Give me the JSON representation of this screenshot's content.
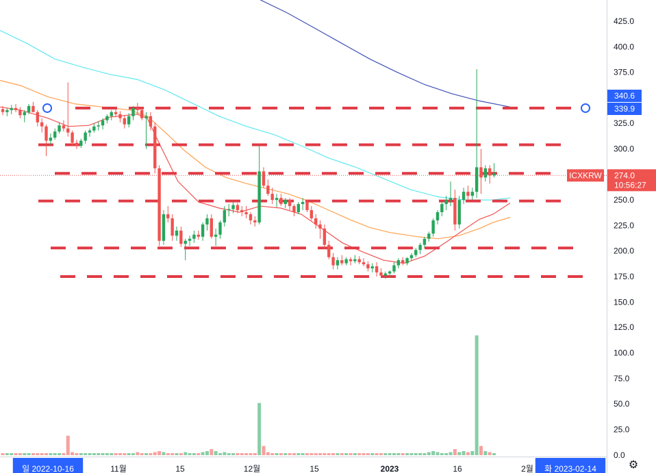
{
  "chart_data": {
    "type": "candlestick",
    "symbol": "ICXKRW",
    "last_price": "274.0",
    "countdown": "10:56:27",
    "price_axis": {
      "ylim": [
        144,
        446
      ],
      "ticks": [
        "425.0",
        "400.0",
        "375.0",
        "350.0",
        "325.0",
        "300.0",
        "275.0",
        "250.0",
        "225.0",
        "200.0",
        "175.0",
        "150.0"
      ]
    },
    "volume_axis": {
      "ylim": [
        0,
        137
      ],
      "ticks": [
        "125.0",
        "100.0",
        "75.0",
        "50.0",
        "25.0",
        "0.0"
      ]
    },
    "x_axis": {
      "ticks": [
        {
          "label": "일 2022-10-16",
          "kind": "cursor"
        },
        {
          "label": "11월",
          "kind": "normal"
        },
        {
          "label": "15",
          "kind": "normal"
        },
        {
          "label": "12월",
          "kind": "normal"
        },
        {
          "label": "15",
          "kind": "normal"
        },
        {
          "label": "2023",
          "kind": "bold"
        },
        {
          "label": "16",
          "kind": "normal"
        },
        {
          "label": "2월",
          "kind": "normal"
        },
        {
          "label": "화 2023-02-14",
          "kind": "cursor"
        }
      ]
    },
    "price_badges": [
      {
        "value": "340.6",
        "color": "#2962ff"
      },
      {
        "value": "339.9",
        "color": "#2962ff"
      }
    ],
    "horizontal_levels": [
      340,
      304,
      276,
      249,
      203,
      175
    ],
    "level_anchor": 339.9,
    "candles": [
      [
        339,
        342,
        333,
        336
      ],
      [
        336,
        340,
        332,
        338
      ],
      [
        338,
        343,
        334,
        340
      ],
      [
        340,
        344,
        336,
        338
      ],
      [
        338,
        341,
        330,
        333
      ],
      [
        333,
        338,
        326,
        336
      ],
      [
        336,
        344,
        334,
        342
      ],
      [
        342,
        346,
        338,
        336
      ],
      [
        336,
        338,
        322,
        326
      ],
      [
        326,
        330,
        316,
        322
      ],
      [
        322,
        324,
        293,
        308
      ],
      [
        308,
        315,
        304,
        311
      ],
      [
        311,
        320,
        309,
        317
      ],
      [
        317,
        326,
        315,
        323
      ],
      [
        323,
        328,
        317,
        320
      ],
      [
        320,
        365,
        312,
        316
      ],
      [
        316,
        318,
        303,
        306
      ],
      [
        306,
        309,
        300,
        303
      ],
      [
        303,
        310,
        301,
        308
      ],
      [
        308,
        318,
        305,
        316
      ],
      [
        316,
        320,
        312,
        318
      ],
      [
        318,
        325,
        316,
        322
      ],
      [
        322,
        327,
        318,
        323
      ],
      [
        323,
        330,
        319,
        328
      ],
      [
        328,
        334,
        325,
        332
      ],
      [
        332,
        338,
        328,
        336
      ],
      [
        336,
        340,
        331,
        334
      ],
      [
        334,
        337,
        326,
        330
      ],
      [
        330,
        333,
        320,
        324
      ],
      [
        324,
        335,
        321,
        332
      ],
      [
        332,
        342,
        328,
        340
      ],
      [
        340,
        345,
        334,
        338
      ],
      [
        338,
        341,
        328,
        330
      ],
      [
        330,
        336,
        300,
        332
      ],
      [
        332,
        336,
        318,
        322
      ],
      [
        322,
        326,
        276,
        281
      ],
      [
        281,
        284,
        205,
        210
      ],
      [
        210,
        240,
        206,
        236
      ],
      [
        236,
        244,
        228,
        232
      ],
      [
        232,
        236,
        210,
        215
      ],
      [
        215,
        224,
        210,
        220
      ],
      [
        220,
        224,
        204,
        207
      ],
      [
        207,
        212,
        191,
        210
      ],
      [
        210,
        215,
        205,
        212
      ],
      [
        212,
        220,
        208,
        216
      ],
      [
        216,
        220,
        211,
        214
      ],
      [
        214,
        228,
        210,
        226
      ],
      [
        226,
        236,
        220,
        232
      ],
      [
        232,
        236,
        212,
        214
      ],
      [
        214,
        222,
        205,
        216
      ],
      [
        216,
        230,
        212,
        228
      ],
      [
        228,
        244,
        224,
        240
      ],
      [
        240,
        246,
        234,
        241
      ],
      [
        241,
        248,
        237,
        245
      ],
      [
        245,
        247,
        237,
        240
      ],
      [
        240,
        244,
        234,
        238
      ],
      [
        238,
        244,
        232,
        236
      ],
      [
        236,
        238,
        226,
        230
      ],
      [
        230,
        234,
        224,
        228
      ],
      [
        228,
        304,
        226,
        278
      ],
      [
        278,
        282,
        262,
        264
      ],
      [
        264,
        270,
        254,
        256
      ],
      [
        256,
        262,
        246,
        250
      ],
      [
        250,
        256,
        243,
        252
      ],
      [
        252,
        256,
        244,
        246
      ],
      [
        246,
        252,
        242,
        250
      ],
      [
        250,
        252,
        240,
        244
      ],
      [
        244,
        246,
        234,
        238
      ],
      [
        238,
        248,
        236,
        246
      ],
      [
        246,
        252,
        240,
        248
      ],
      [
        248,
        250,
        238,
        240
      ],
      [
        240,
        244,
        230,
        232
      ],
      [
        232,
        236,
        222,
        226
      ],
      [
        226,
        230,
        212,
        222
      ],
      [
        222,
        226,
        202,
        206
      ],
      [
        206,
        210,
        192,
        194
      ],
      [
        194,
        198,
        182,
        186
      ],
      [
        186,
        194,
        182,
        191
      ],
      [
        191,
        196,
        186,
        188
      ],
      [
        188,
        194,
        186,
        192
      ],
      [
        192,
        194,
        186,
        190
      ],
      [
        190,
        196,
        188,
        192
      ],
      [
        192,
        195,
        187,
        189
      ],
      [
        189,
        193,
        185,
        187
      ],
      [
        187,
        190,
        180,
        183
      ],
      [
        183,
        188,
        179,
        185
      ],
      [
        185,
        189,
        175,
        179
      ],
      [
        179,
        183,
        174,
        176
      ],
      [
        176,
        180,
        173,
        178
      ],
      [
        178,
        181,
        174,
        180
      ],
      [
        180,
        189,
        178,
        186
      ],
      [
        186,
        193,
        183,
        191
      ],
      [
        191,
        194,
        186,
        188
      ],
      [
        188,
        194,
        186,
        193
      ],
      [
        193,
        198,
        190,
        196
      ],
      [
        196,
        203,
        194,
        201
      ],
      [
        201,
        208,
        197,
        206
      ],
      [
        206,
        214,
        203,
        212
      ],
      [
        212,
        219,
        209,
        217
      ],
      [
        217,
        232,
        214,
        230
      ],
      [
        230,
        240,
        226,
        238
      ],
      [
        238,
        248,
        234,
        246
      ],
      [
        246,
        254,
        240,
        250
      ],
      [
        250,
        268,
        244,
        252
      ],
      [
        252,
        260,
        220,
        226
      ],
      [
        226,
        254,
        222,
        250
      ],
      [
        250,
        262,
        246,
        258
      ],
      [
        258,
        264,
        250,
        254
      ],
      [
        254,
        262,
        250,
        258
      ],
      [
        258,
        378,
        252,
        282
      ],
      [
        282,
        300,
        256,
        272
      ],
      [
        272,
        284,
        268,
        281
      ],
      [
        281,
        284,
        266,
        274
      ],
      [
        274,
        286,
        272,
        276
      ]
    ],
    "volumes": [
      2,
      2,
      2,
      2,
      2,
      2,
      2,
      2,
      2,
      2,
      2,
      2,
      2,
      2,
      2,
      19,
      3,
      2,
      2,
      2,
      2,
      2,
      2,
      2,
      2,
      2,
      2,
      2,
      2,
      2,
      2,
      3,
      2,
      2,
      2,
      3,
      4,
      3,
      2,
      2,
      2,
      2,
      3,
      2,
      2,
      2,
      3,
      4,
      6,
      4,
      2,
      3,
      2,
      2,
      2,
      2,
      2,
      2,
      2,
      51,
      9,
      3,
      2,
      2,
      2,
      2,
      2,
      2,
      2,
      2,
      2,
      2,
      2,
      2,
      2,
      2,
      2,
      2,
      2,
      2,
      2,
      2,
      2,
      2,
      2,
      2,
      2,
      2,
      2,
      2,
      2,
      2,
      2,
      2,
      2,
      2,
      2,
      2,
      3,
      4,
      3,
      2,
      2,
      3,
      6,
      3,
      4,
      3,
      4,
      117,
      9,
      4,
      3,
      2
    ],
    "moving_averages": [
      {
        "color": "#3f51b5",
        "points": [
          [
            380,
            446
          ],
          [
            420,
            433
          ],
          [
            460,
            418
          ],
          [
            500,
            403
          ],
          [
            540,
            388
          ],
          [
            580,
            375
          ],
          [
            620,
            363
          ],
          [
            660,
            354
          ],
          [
            700,
            347
          ],
          [
            745,
            341
          ]
        ]
      },
      {
        "color": "#5ee8f0",
        "points": [
          [
            0,
            416
          ],
          [
            40,
            403
          ],
          [
            80,
            388
          ],
          [
            120,
            380
          ],
          [
            160,
            373
          ],
          [
            200,
            368
          ],
          [
            240,
            358
          ],
          [
            280,
            345
          ],
          [
            320,
            332
          ],
          [
            360,
            322
          ],
          [
            400,
            314
          ],
          [
            440,
            303
          ],
          [
            480,
            291
          ],
          [
            520,
            282
          ],
          [
            560,
            271
          ],
          [
            600,
            260
          ],
          [
            640,
            253
          ],
          [
            680,
            250
          ],
          [
            720,
            250
          ],
          [
            745,
            252
          ]
        ]
      },
      {
        "color": "#ffa04d",
        "points": [
          [
            0,
            367
          ],
          [
            30,
            362
          ],
          [
            70,
            351
          ],
          [
            110,
            344
          ],
          [
            150,
            341
          ],
          [
            190,
            338
          ],
          [
            215,
            332
          ],
          [
            240,
            317
          ],
          [
            270,
            298
          ],
          [
            300,
            282
          ],
          [
            330,
            272
          ],
          [
            360,
            266
          ],
          [
            390,
            261
          ],
          [
            420,
            256
          ],
          [
            450,
            249
          ],
          [
            480,
            240
          ],
          [
            510,
            231
          ],
          [
            540,
            223
          ],
          [
            570,
            218
          ],
          [
            610,
            214
          ],
          [
            640,
            212
          ],
          [
            670,
            215
          ],
          [
            700,
            222
          ],
          [
            720,
            228
          ],
          [
            745,
            233
          ]
        ]
      },
      {
        "color": "#ef5350",
        "points": [
          [
            0,
            341
          ],
          [
            30,
            338
          ],
          [
            70,
            330
          ],
          [
            100,
            322
          ],
          [
            130,
            323
          ],
          [
            160,
            331
          ],
          [
            200,
            334
          ],
          [
            215,
            330
          ],
          [
            235,
            302
          ],
          [
            260,
            268
          ],
          [
            290,
            248
          ],
          [
            320,
            242
          ],
          [
            350,
            238
          ],
          [
            380,
            244
          ],
          [
            410,
            242
          ],
          [
            440,
            236
          ],
          [
            470,
            222
          ],
          [
            500,
            208
          ],
          [
            530,
            199
          ],
          [
            560,
            191
          ],
          [
            590,
            188
          ],
          [
            620,
            195
          ],
          [
            650,
            208
          ],
          [
            680,
            222
          ],
          [
            700,
            231
          ],
          [
            720,
            236
          ],
          [
            745,
            247
          ]
        ]
      }
    ]
  }
}
